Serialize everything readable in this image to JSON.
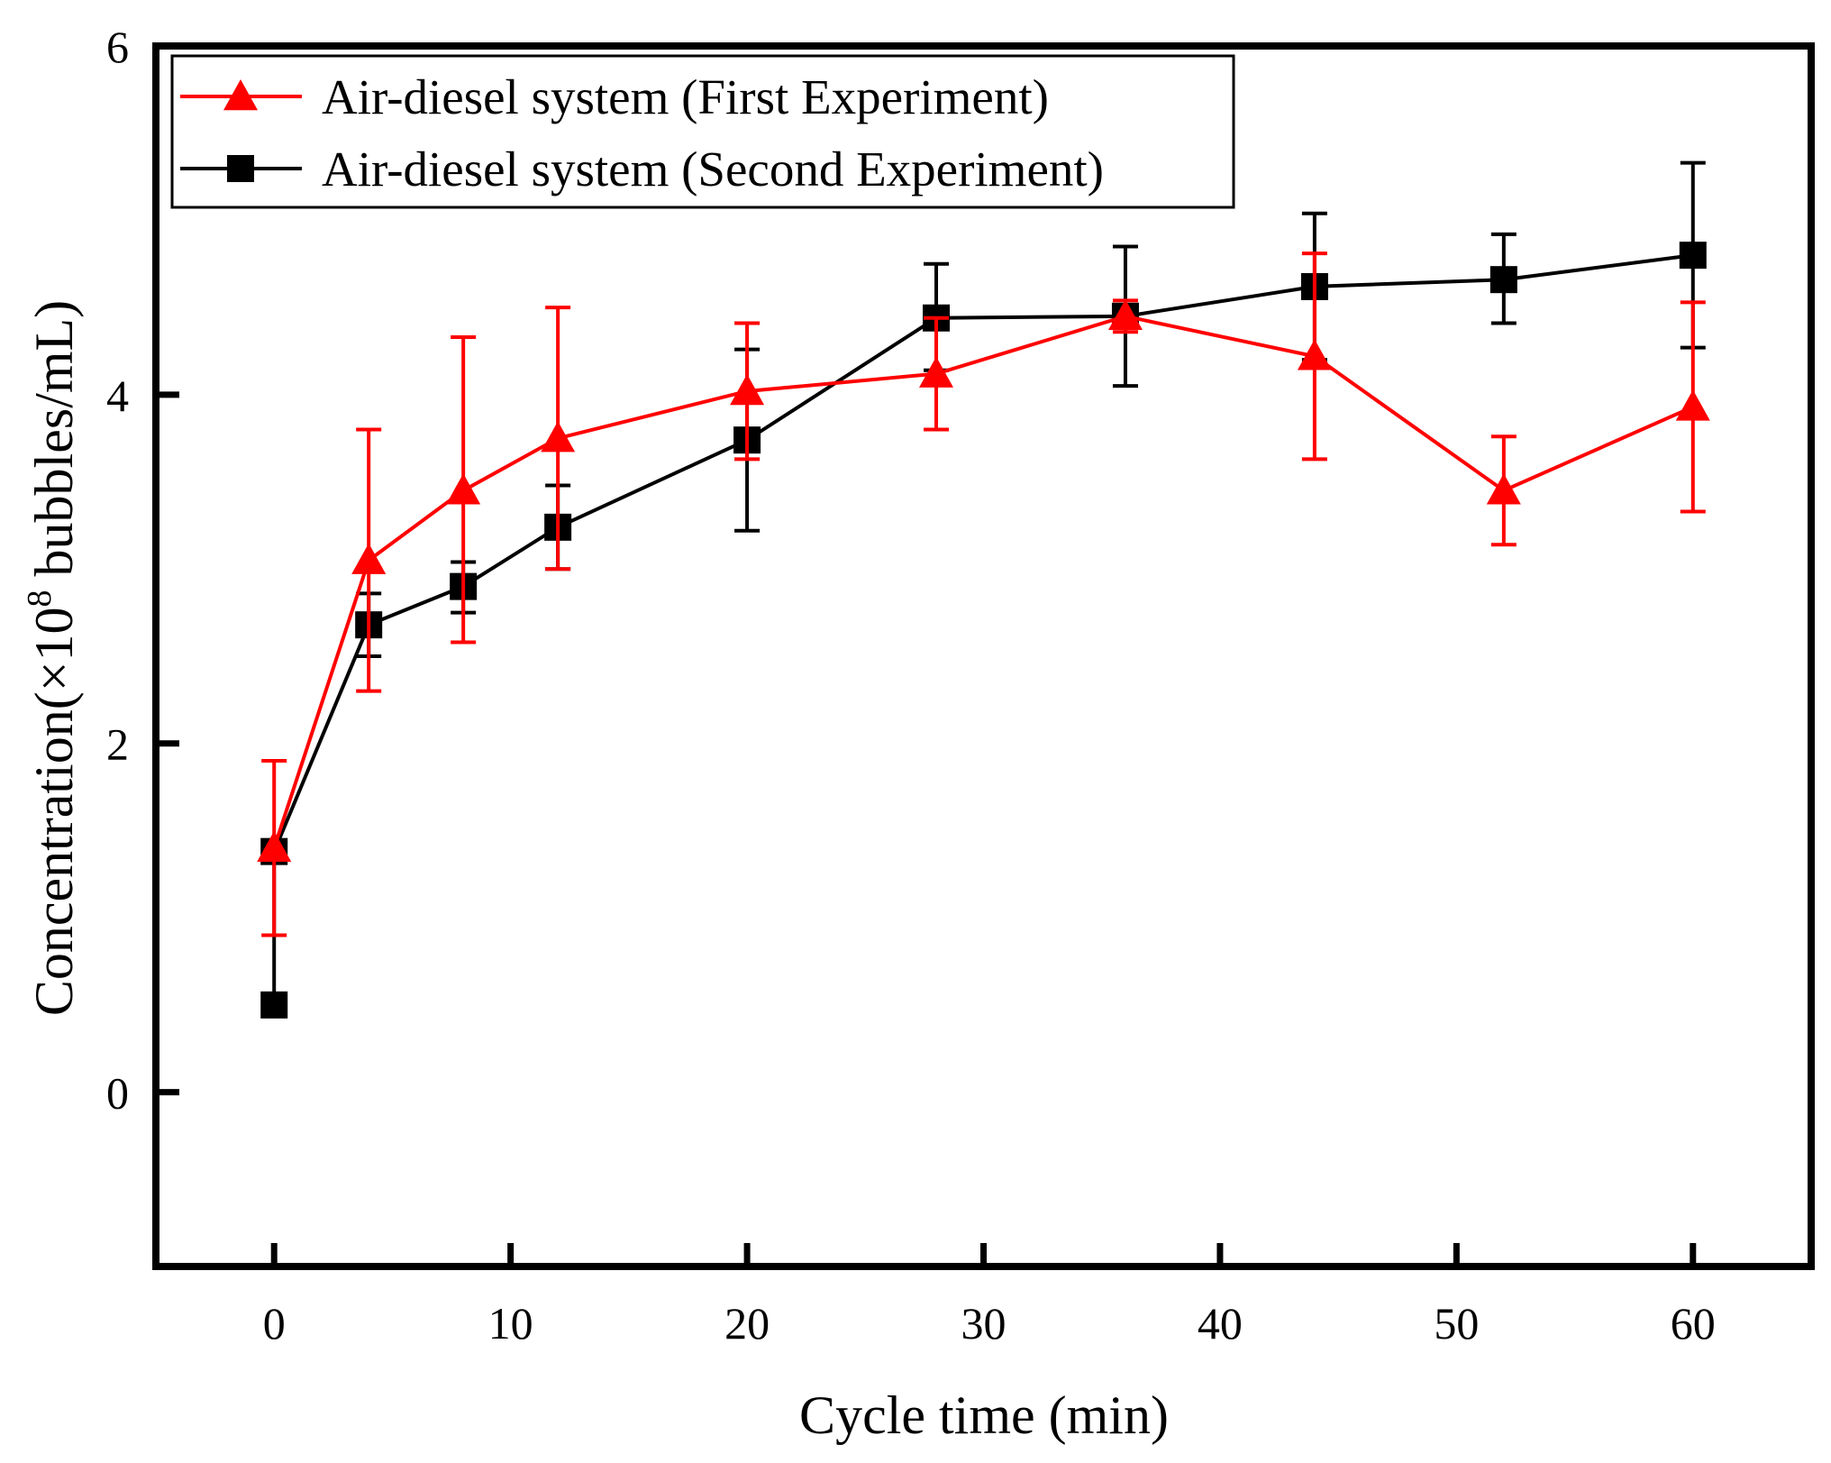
{
  "chart_data": {
    "type": "line",
    "title": "",
    "xlabel": "Cycle time (min)",
    "ylabel": {
      "prefix": "Concentration(×10",
      "sup": "8",
      "suffix": " bubbles/mL)"
    },
    "xlim": [
      -5,
      65
    ],
    "ylim": [
      -1,
      6
    ],
    "xticks": [
      0,
      10,
      20,
      30,
      40,
      50,
      60
    ],
    "yticks": [
      0,
      2,
      4,
      6
    ],
    "legend_position": "top-left",
    "series": [
      {
        "name": "Air-diesel system (First Experiment)",
        "color": "#ff0000",
        "marker": "triangle",
        "points": [
          {
            "x": 0,
            "y": 1.4,
            "lo": 0.9,
            "hi": 1.9
          },
          {
            "x": 4,
            "y": 3.05,
            "lo": 2.3,
            "hi": 3.8
          },
          {
            "x": 8,
            "y": 3.45,
            "lo": 2.58,
            "hi": 4.33
          },
          {
            "x": 12,
            "y": 3.75,
            "lo": 3.0,
            "hi": 4.5
          },
          {
            "x": 20,
            "y": 4.02,
            "lo": 3.63,
            "hi": 4.41
          },
          {
            "x": 28,
            "y": 4.12,
            "lo": 3.8,
            "hi": 4.44
          },
          {
            "x": 36,
            "y": 4.45,
            "lo": 4.36,
            "hi": 4.54
          },
          {
            "x": 44,
            "y": 4.22,
            "lo": 3.63,
            "hi": 4.81
          },
          {
            "x": 52,
            "y": 3.45,
            "lo": 3.14,
            "hi": 3.76
          },
          {
            "x": 60,
            "y": 3.93,
            "lo": 3.33,
            "hi": 4.53
          }
        ]
      },
      {
        "name": "Air-diesel system (Second Experiment)",
        "color": "#000000",
        "marker": "square",
        "points": [
          {
            "x": 0,
            "y": 1.38,
            "lo": 0.5,
            "hi": 1.38
          },
          {
            "x": 0,
            "y": 0.5,
            "lo": 0.5,
            "hi": 0.5
          },
          {
            "x": 4,
            "y": 2.68,
            "lo": 2.5,
            "hi": 2.86
          },
          {
            "x": 8,
            "y": 2.9,
            "lo": 2.75,
            "hi": 3.04
          },
          {
            "x": 12,
            "y": 3.24,
            "lo": 3.0,
            "hi": 3.48
          },
          {
            "x": 20,
            "y": 3.74,
            "lo": 3.22,
            "hi": 4.26
          },
          {
            "x": 28,
            "y": 4.44,
            "lo": 4.14,
            "hi": 4.75
          },
          {
            "x": 36,
            "y": 4.45,
            "lo": 4.05,
            "hi": 4.85
          },
          {
            "x": 44,
            "y": 4.62,
            "lo": 4.2,
            "hi": 5.04
          },
          {
            "x": 52,
            "y": 4.66,
            "lo": 4.41,
            "hi": 4.92
          },
          {
            "x": 60,
            "y": 4.8,
            "lo": 4.27,
            "hi": 5.33
          }
        ],
        "line_points": [
          {
            "x": 0,
            "y": 1.38
          },
          {
            "x": 4,
            "y": 2.68
          },
          {
            "x": 8,
            "y": 2.9
          },
          {
            "x": 12,
            "y": 3.24
          },
          {
            "x": 20,
            "y": 3.74
          },
          {
            "x": 28,
            "y": 4.44
          },
          {
            "x": 36,
            "y": 4.45
          },
          {
            "x": 44,
            "y": 4.62
          },
          {
            "x": 52,
            "y": 4.66
          },
          {
            "x": 60,
            "y": 4.8
          }
        ]
      }
    ]
  }
}
